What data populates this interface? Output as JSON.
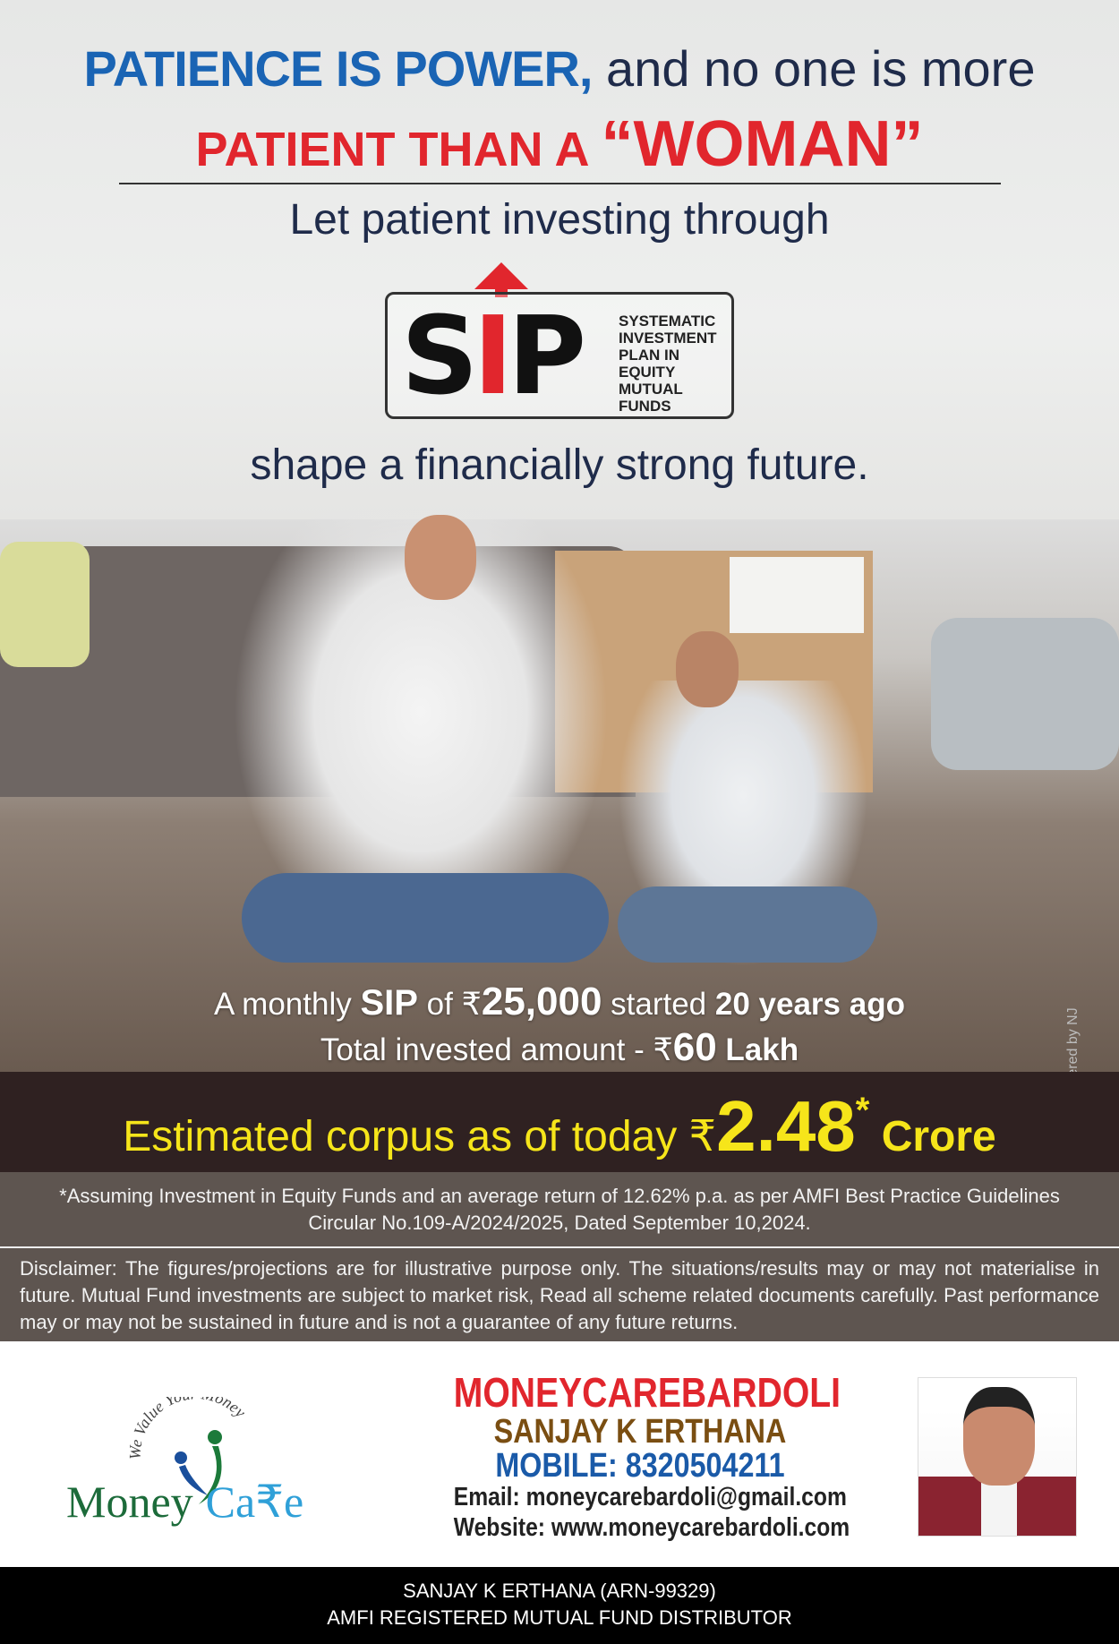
{
  "headline": {
    "part1": "PATIENCE IS POWER,",
    "part2": " and no one is more",
    "part3": "PATIENT THAN A ",
    "part4": "“WOMAN”"
  },
  "intro": "Let patient investing through",
  "sip_logo": {
    "word_s": "S",
    "word_i": "I",
    "word_p": "P",
    "description": [
      "SYSTEMATIC",
      "INVESTMENT",
      "PLAN IN",
      "EQUITY",
      "MUTUAL",
      "FUNDS"
    ]
  },
  "tagline": "shape a financially strong future.",
  "stats": {
    "l1a": "A monthly ",
    "l1b": "SIP",
    "l1c": " of ₹",
    "l1d": "25,000",
    "l1e": " started ",
    "l1f": "20 years ago",
    "l2a": "Total invested amount - ₹",
    "l2b": "60",
    "l2c": " Lakh"
  },
  "powered_by": "*Powered by NJ",
  "corpus": {
    "label": "Estimated corpus as of today ₹",
    "value": "2.48",
    "asterisk": "*",
    "unit": " Crore"
  },
  "assumption": "*Assuming Investment in Equity Funds and an average return of 12.62% p.a. as per AMFI Best Practice Guidelines Circular No.109-A/2024/2025, Dated September 10,2024.",
  "disclaimer": "Disclaimer: The figures/projections are for illustrative purpose only. The situations/results may or may not materialise in future. Mutual Fund investments are subject to market risk, Read all scheme related documents carefully. Past performance may or may not be sustained in future and is not a guarantee of any future returns.",
  "logo": {
    "arc_text": "We Value Your Money",
    "name1": "Money",
    "name2": "Ca₹e"
  },
  "contact": {
    "company": "MONEYCAREBARDOLI",
    "name": "SANJAY K ERTHANA",
    "mobile": "MOBILE: 8320504211",
    "email": "Email: moneycarebardoli@gmail.com",
    "website": "Website: www.moneycarebardoli.com"
  },
  "footer": {
    "line1": "SANJAY K ERTHANA (ARN-99329)",
    "line2": "AMFI REGISTERED MUTUAL FUND DISTRIBUTOR"
  },
  "colors": {
    "blue": "#1a64b4",
    "red": "#e1262d",
    "yellow": "#f6e51a",
    "band": "#2f2121",
    "brown": "#7a4e12"
  }
}
